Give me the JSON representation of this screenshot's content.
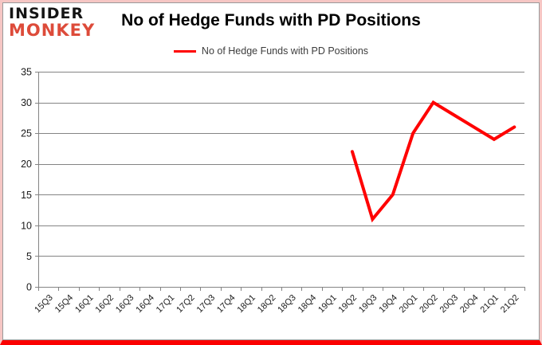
{
  "logo": {
    "line1": "INSIDER",
    "line2": "MONKEY"
  },
  "title": "No of Hedge Funds with PD Positions",
  "legend": {
    "label": "No of Hedge Funds with PD Positions"
  },
  "chart_data": {
    "type": "line",
    "title": "No of Hedge Funds with PD Positions",
    "categories": [
      "15Q3",
      "15Q4",
      "16Q1",
      "16Q2",
      "16Q3",
      "16Q4",
      "17Q1",
      "17Q2",
      "17Q3",
      "17Q4",
      "18Q1",
      "18Q2",
      "18Q3",
      "18Q4",
      "19Q1",
      "19Q2",
      "19Q3",
      "19Q4",
      "20Q1",
      "20Q2",
      "20Q3",
      "20Q4",
      "21Q1",
      "21Q2"
    ],
    "series": [
      {
        "name": "No of Hedge Funds with PD Positions",
        "color": "#ff0000",
        "values": [
          null,
          null,
          null,
          null,
          null,
          null,
          null,
          null,
          null,
          null,
          null,
          null,
          null,
          null,
          null,
          22,
          11,
          15,
          25,
          30,
          28,
          26,
          24,
          26
        ]
      }
    ],
    "ylim": [
      0,
      35
    ],
    "yticks": [
      0,
      5,
      10,
      15,
      20,
      25,
      30,
      35
    ],
    "grid": true,
    "legend_position": "top"
  },
  "colors": {
    "series": "#ff0000",
    "grid": "#848484",
    "axis": "#848484",
    "tick_text": "#1a1a1a",
    "title_text": "#000000",
    "legend_text": "#3d3d3d",
    "logo_black": "#151515",
    "logo_red": "#dd4b3a",
    "border_pink": "#f6c6c4",
    "border_red": "#fb0000"
  }
}
